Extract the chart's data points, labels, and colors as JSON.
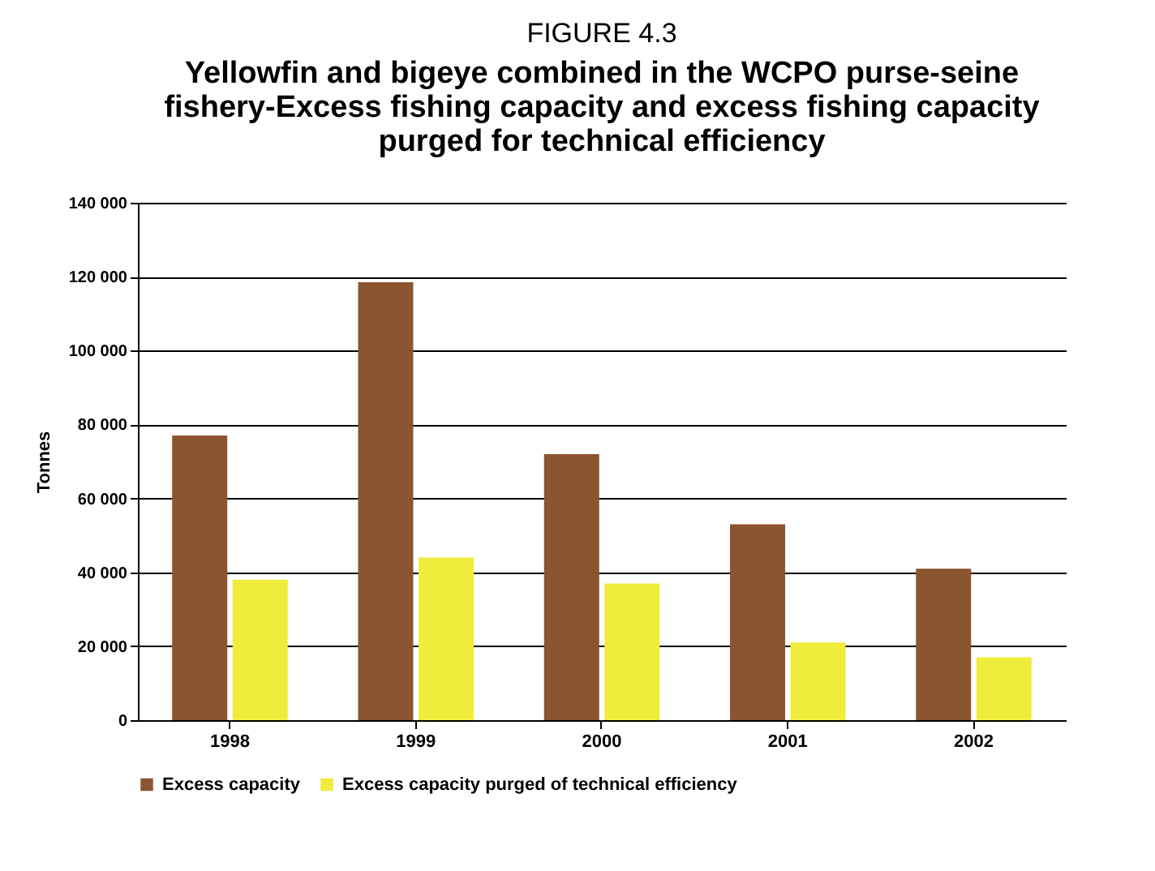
{
  "chart_data": {
    "type": "bar",
    "title": "FIGURE 4.3",
    "subtitle": "Yellowfin and bigeye combined in the WCPO purse-seine fishery-Excess fishing capacity and excess fishing capacity purged for technical efficiency",
    "ylabel": "Tonnes",
    "categories": [
      "1998",
      "1999",
      "2000",
      "2001",
      "2002"
    ],
    "series": [
      {
        "name": "Excess capacity",
        "color": "#8b5530",
        "values": [
          77000,
          118500,
          72000,
          53000,
          41000
        ]
      },
      {
        "name": "Excess capacity purged of technical efficiency",
        "color": "#f0ec3c",
        "values": [
          38000,
          44000,
          37000,
          21000,
          17000
        ]
      }
    ],
    "ylim": [
      0,
      140000
    ],
    "yticks": [
      0,
      {
        "value": 20000,
        "label": "20 000"
      },
      {
        "value": 40000,
        "label": "40 000"
      },
      {
        "value": 60000,
        "label": "60 000"
      },
      {
        "value": 80000,
        "label": "80 000"
      },
      {
        "value": 100000,
        "label": "100 000"
      },
      {
        "value": 120000,
        "label": "120 000"
      },
      {
        "value": 140000,
        "label": "140 000"
      }
    ],
    "grid": "y",
    "legend": "bottom"
  }
}
